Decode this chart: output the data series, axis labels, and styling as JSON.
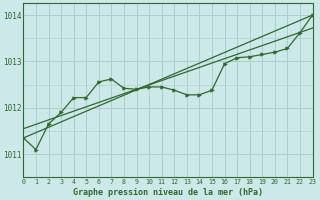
{
  "title": "Graphe pression niveau de la mer (hPa)",
  "bg_color": "#cce8e8",
  "grid_color": "#aacfcf",
  "line_color": "#2d6b2d",
  "x_min": 0,
  "x_max": 23,
  "y_min": 1010.5,
  "y_max": 1014.25,
  "y_ticks": [
    1011,
    1012,
    1013,
    1014
  ],
  "x_ticks": [
    0,
    1,
    2,
    3,
    4,
    5,
    6,
    7,
    8,
    9,
    10,
    11,
    12,
    13,
    14,
    15,
    16,
    17,
    18,
    19,
    20,
    21,
    22,
    23
  ],
  "series1_x": [
    0,
    1,
    2,
    3,
    4,
    5,
    6,
    7,
    8,
    9,
    10,
    11,
    12,
    13,
    14,
    15,
    16,
    17,
    18,
    19,
    20,
    21,
    22,
    23
  ],
  "series1_y": [
    1011.35,
    1011.1,
    1011.65,
    1011.9,
    1012.22,
    1012.22,
    1012.56,
    1012.62,
    1012.42,
    1012.4,
    1012.45,
    1012.45,
    1012.38,
    1012.28,
    1012.28,
    1012.38,
    1012.95,
    1013.08,
    1013.1,
    1013.15,
    1013.2,
    1013.28,
    1013.62,
    1014.0
  ],
  "line1": [
    [
      0,
      1011.35
    ],
    [
      23,
      1014.0
    ]
  ],
  "line2": [
    [
      0,
      1011.55
    ],
    [
      23,
      1013.72
    ]
  ]
}
